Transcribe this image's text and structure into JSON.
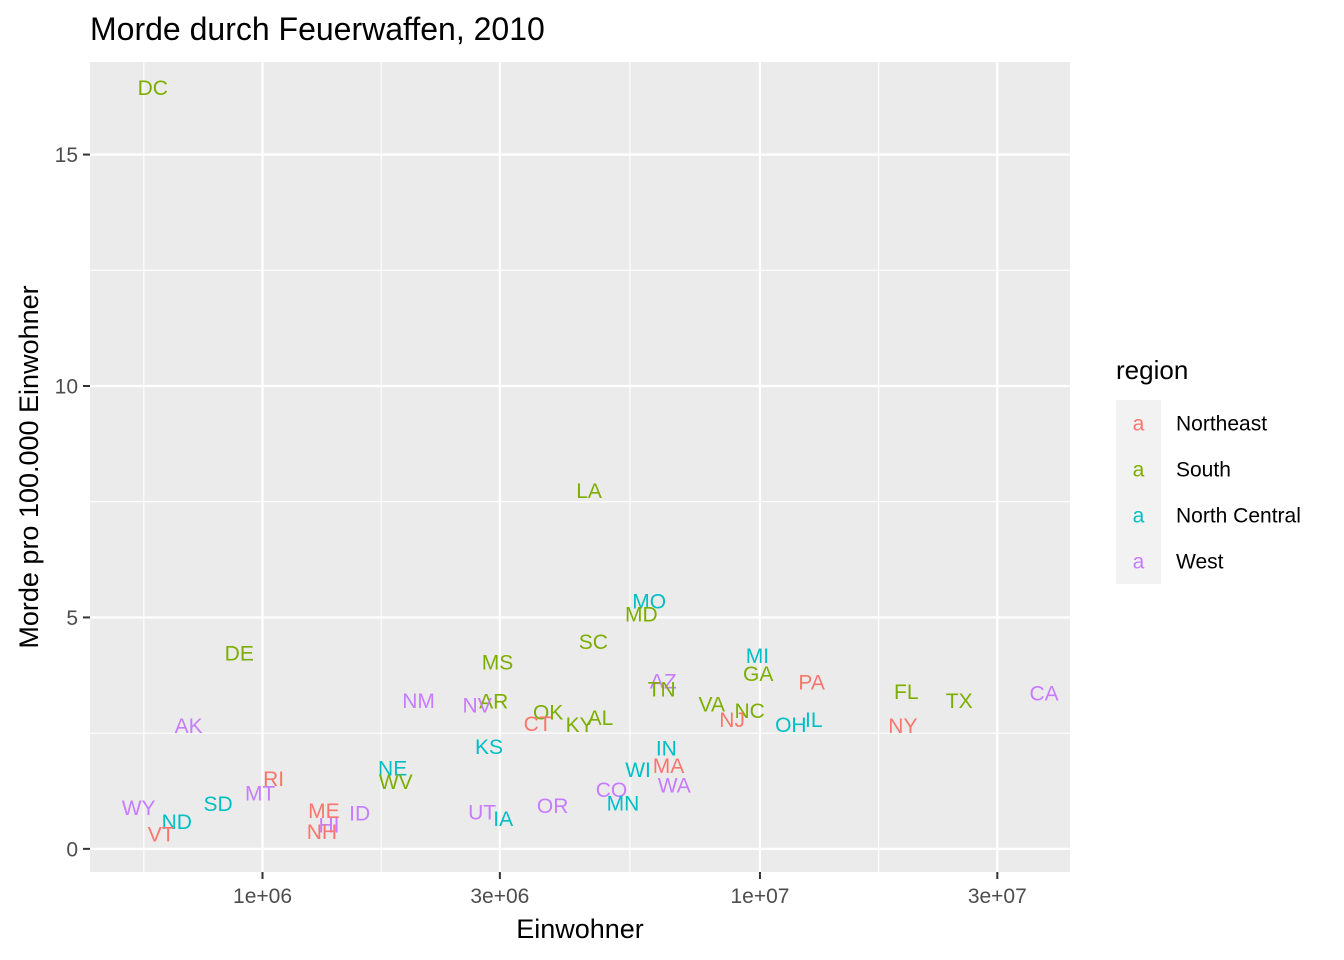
{
  "chart_data": {
    "type": "scatter",
    "title": "Morde durch Feuerwaffen, 2010",
    "xlabel": "Einwohner",
    "ylabel": "Morde pro 100.000 Einwohner",
    "x_scale": "log10",
    "xlim": [
      450000,
      42000000
    ],
    "ylim": [
      -0.5,
      17.0
    ],
    "x_ticks": [
      {
        "value": 1000000,
        "label": "1e+06"
      },
      {
        "value": 3000000,
        "label": "3e+06"
      },
      {
        "value": 10000000,
        "label": "1e+07"
      },
      {
        "value": 30000000,
        "label": "3e+07"
      }
    ],
    "y_ticks": [
      {
        "value": 0,
        "label": "0"
      },
      {
        "value": 5,
        "label": "5"
      },
      {
        "value": 10,
        "label": "10"
      },
      {
        "value": 15,
        "label": "15"
      }
    ],
    "grid": true,
    "legend_position": "right",
    "legend": {
      "title": "region",
      "key_glyph": "a",
      "entries": [
        {
          "region": "Northeast",
          "color": "#F8766D"
        },
        {
          "region": "South",
          "color": "#7CAE00"
        },
        {
          "region": "North Central",
          "color": "#00BFC4"
        },
        {
          "region": "West",
          "color": "#C77CFF"
        }
      ]
    },
    "points": [
      {
        "label": "DC",
        "region": "South",
        "x": 601723,
        "y": 16.45
      },
      {
        "label": "LA",
        "region": "South",
        "x": 4533372,
        "y": 7.74
      },
      {
        "label": "MO",
        "region": "North Central",
        "x": 5988927,
        "y": 5.36
      },
      {
        "label": "MD",
        "region": "South",
        "x": 5773552,
        "y": 5.07
      },
      {
        "label": "SC",
        "region": "South",
        "x": 4625364,
        "y": 4.48
      },
      {
        "label": "DE",
        "region": "South",
        "x": 897934,
        "y": 4.23
      },
      {
        "label": "MI",
        "region": "North Central",
        "x": 9883640,
        "y": 4.18
      },
      {
        "label": "MS",
        "region": "South",
        "x": 2967297,
        "y": 4.04
      },
      {
        "label": "GA",
        "region": "South",
        "x": 9920000,
        "y": 3.79
      },
      {
        "label": "PA",
        "region": "Northeast",
        "x": 12702379,
        "y": 3.6
      },
      {
        "label": "AZ",
        "region": "West",
        "x": 6392017,
        "y": 3.63
      },
      {
        "label": "TN",
        "region": "South",
        "x": 6346105,
        "y": 3.45
      },
      {
        "label": "FL",
        "region": "South",
        "x": 19687653,
        "y": 3.4
      },
      {
        "label": "CA",
        "region": "West",
        "x": 37253956,
        "y": 3.37
      },
      {
        "label": "TX",
        "region": "South",
        "x": 25145561,
        "y": 3.2
      },
      {
        "label": "NM",
        "region": "West",
        "x": 2059179,
        "y": 3.21
      },
      {
        "label": "AR",
        "region": "South",
        "x": 2915918,
        "y": 3.19
      },
      {
        "label": "NV",
        "region": "West",
        "x": 2700551,
        "y": 3.11
      },
      {
        "label": "VA",
        "region": "South",
        "x": 8001024,
        "y": 3.13
      },
      {
        "label": "NC",
        "region": "South",
        "x": 9535483,
        "y": 2.99
      },
      {
        "label": "OK",
        "region": "South",
        "x": 3751351,
        "y": 2.96
      },
      {
        "label": "NJ",
        "region": "Northeast",
        "x": 8791894,
        "y": 2.8
      },
      {
        "label": "AL",
        "region": "South",
        "x": 4779736,
        "y": 2.84
      },
      {
        "label": "IL",
        "region": "North Central",
        "x": 12830632,
        "y": 2.79
      },
      {
        "label": "CT",
        "region": "Northeast",
        "x": 3574097,
        "y": 2.71
      },
      {
        "label": "OH",
        "region": "North Central",
        "x": 11536504,
        "y": 2.69
      },
      {
        "label": "NY",
        "region": "Northeast",
        "x": 19378102,
        "y": 2.67
      },
      {
        "label": "KY",
        "region": "South",
        "x": 4339367,
        "y": 2.69
      },
      {
        "label": "AK",
        "region": "West",
        "x": 710231,
        "y": 2.67
      },
      {
        "label": "KS",
        "region": "North Central",
        "x": 2853118,
        "y": 2.21
      },
      {
        "label": "IN",
        "region": "North Central",
        "x": 6483802,
        "y": 2.18
      },
      {
        "label": "MA",
        "region": "Northeast",
        "x": 6547629,
        "y": 1.8
      },
      {
        "label": "WI",
        "region": "North Central",
        "x": 5686986,
        "y": 1.71
      },
      {
        "label": "NE",
        "region": "North Central",
        "x": 1826341,
        "y": 1.75
      },
      {
        "label": "WV",
        "region": "South",
        "x": 1852994,
        "y": 1.46
      },
      {
        "label": "RI",
        "region": "Northeast",
        "x": 1052567,
        "y": 1.52
      },
      {
        "label": "WA",
        "region": "West",
        "x": 6724540,
        "y": 1.38
      },
      {
        "label": "CO",
        "region": "West",
        "x": 5029196,
        "y": 1.28
      },
      {
        "label": "MT",
        "region": "West",
        "x": 989415,
        "y": 1.21
      },
      {
        "label": "MN",
        "region": "North Central",
        "x": 5303925,
        "y": 0.99
      },
      {
        "label": "SD",
        "region": "North Central",
        "x": 814180,
        "y": 0.98
      },
      {
        "label": "OR",
        "region": "West",
        "x": 3831074,
        "y": 0.94
      },
      {
        "label": "WY",
        "region": "West",
        "x": 563626,
        "y": 0.89
      },
      {
        "label": "ME",
        "region": "Northeast",
        "x": 1328361,
        "y": 0.83
      },
      {
        "label": "ID",
        "region": "West",
        "x": 1567582,
        "y": 0.77
      },
      {
        "label": "UT",
        "region": "West",
        "x": 2763885,
        "y": 0.8
      },
      {
        "label": "IA",
        "region": "North Central",
        "x": 3046355,
        "y": 0.66
      },
      {
        "label": "HI",
        "region": "West",
        "x": 1360301,
        "y": 0.52
      },
      {
        "label": "ND",
        "region": "North Central",
        "x": 672591,
        "y": 0.59
      },
      {
        "label": "NH",
        "region": "Northeast",
        "x": 1316470,
        "y": 0.38
      },
      {
        "label": "VT",
        "region": "Northeast",
        "x": 625741,
        "y": 0.32
      }
    ]
  }
}
